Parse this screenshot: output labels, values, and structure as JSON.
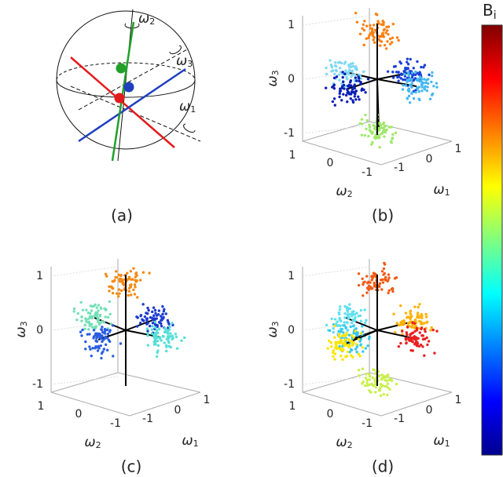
{
  "panels": [
    {
      "label": "(a)",
      "axes": [
        {
          "symbol": "ω",
          "sub": "2"
        },
        {
          "symbol": "ω",
          "sub": "3"
        },
        {
          "symbol": "ω",
          "sub": "1"
        }
      ]
    },
    {
      "label": "(b)",
      "z_label": {
        "symbol": "ω",
        "sub": "3"
      },
      "x_label": {
        "symbol": "ω",
        "sub": "2"
      },
      "y_label": {
        "symbol": "ω",
        "sub": "1"
      },
      "z_ticks": [
        "1",
        "0",
        "-1"
      ],
      "x_ticks": [
        "1",
        "0",
        "-1"
      ],
      "y_ticks": [
        "-1",
        "0",
        "1"
      ]
    },
    {
      "label": "(c)",
      "z_label": {
        "symbol": "ω",
        "sub": "3"
      },
      "x_label": {
        "symbol": "ω",
        "sub": "2"
      },
      "y_label": {
        "symbol": "ω",
        "sub": "1"
      },
      "z_ticks": [
        "1",
        "0",
        "-1"
      ],
      "x_ticks": [
        "1",
        "0",
        "-1"
      ],
      "y_ticks": [
        "-1",
        "0",
        "1"
      ]
    },
    {
      "label": "(d)",
      "z_label": {
        "symbol": "ω",
        "sub": "3"
      },
      "x_label": {
        "symbol": "ω",
        "sub": "2"
      },
      "y_label": {
        "symbol": "ω",
        "sub": "1"
      },
      "z_ticks": [
        "1",
        "0",
        "-1"
      ],
      "x_ticks": [
        "1",
        "0",
        "-1"
      ],
      "y_ticks": [
        "-1",
        "0",
        "1"
      ]
    }
  ],
  "colorbar": {
    "symbol": "B",
    "sub": "i"
  }
}
